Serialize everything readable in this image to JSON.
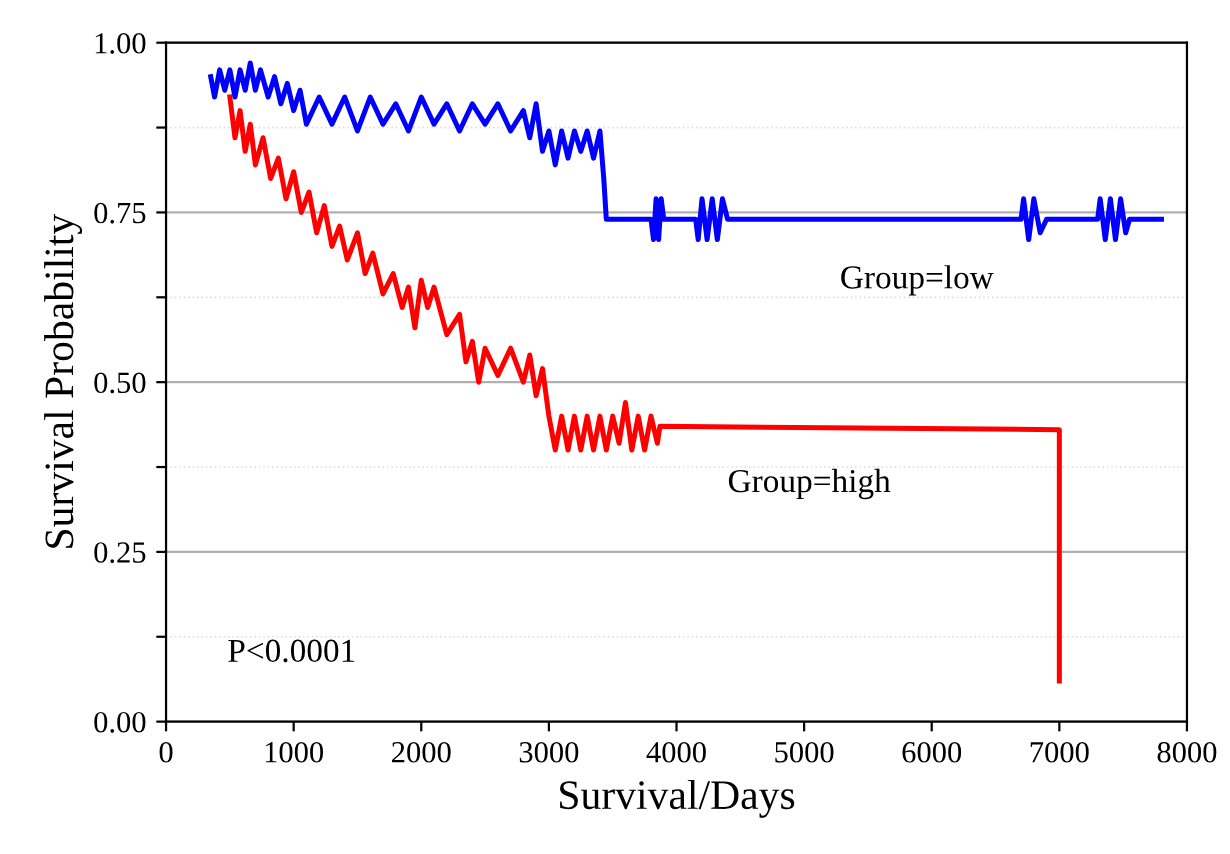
{
  "chart_data": {
    "type": "line",
    "xlabel": "Survival/Days",
    "ylabel": "Survival Probability",
    "xlim": [
      0,
      8000
    ],
    "xticks": [
      0,
      1000,
      2000,
      3000,
      4000,
      5000,
      6000,
      7000,
      8000
    ],
    "ylim": [
      0,
      1
    ],
    "yticks": [
      {
        "value": 0,
        "label": "0.00"
      },
      {
        "value": 0.125,
        "label": null
      },
      {
        "value": 0.25,
        "label": "0.25"
      },
      {
        "value": 0.375,
        "label": null
      },
      {
        "value": 0.5,
        "label": "0.50"
      },
      {
        "value": 0.625,
        "label": null
      },
      {
        "value": 0.75,
        "label": "0.75"
      },
      {
        "value": 0.875,
        "label": null
      },
      {
        "value": 1,
        "label": "1.00"
      }
    ],
    "grid": "y",
    "legend": false,
    "marker": "none",
    "line_style": "solid",
    "annotations": [
      "Group=low",
      "Group=high",
      "P<0.0001"
    ],
    "series": [
      {
        "color": "#0000ff",
        "x": [
          350,
          380,
          420,
          460,
          500,
          540,
          580,
          620,
          660,
          700,
          740,
          800,
          850,
          900,
          950,
          1000,
          1050,
          1100,
          1200,
          1300,
          1400,
          1500,
          1600,
          1700,
          1800,
          1900,
          2000,
          2100,
          2200,
          2300,
          2400,
          2500,
          2600,
          2700,
          2800,
          2850,
          2900,
          2950,
          3000,
          3050,
          3100,
          3150,
          3200,
          3250,
          3300,
          3350,
          3400,
          3430,
          3450,
          3800,
          3820,
          3840,
          3860,
          3880,
          3900,
          4150,
          4170,
          4200,
          4240,
          4280,
          4320,
          4360,
          4400,
          6700,
          6720,
          6760,
          6800,
          6850,
          6900,
          7300,
          7320,
          7360,
          7400,
          7440,
          7480,
          7520,
          7550,
          7800
        ],
        "values": [
          0.95,
          0.92,
          0.96,
          0.93,
          0.96,
          0.92,
          0.96,
          0.93,
          0.97,
          0.93,
          0.96,
          0.92,
          0.95,
          0.91,
          0.94,
          0.9,
          0.93,
          0.88,
          0.92,
          0.88,
          0.92,
          0.87,
          0.92,
          0.88,
          0.91,
          0.87,
          0.92,
          0.88,
          0.91,
          0.87,
          0.91,
          0.88,
          0.91,
          0.87,
          0.9,
          0.86,
          0.91,
          0.84,
          0.87,
          0.82,
          0.87,
          0.83,
          0.87,
          0.84,
          0.87,
          0.83,
          0.87,
          0.8,
          0.74,
          0.74,
          0.71,
          0.77,
          0.71,
          0.77,
          0.74,
          0.74,
          0.71,
          0.77,
          0.71,
          0.77,
          0.71,
          0.77,
          0.74,
          0.74,
          0.77,
          0.71,
          0.77,
          0.72,
          0.74,
          0.74,
          0.77,
          0.71,
          0.77,
          0.71,
          0.77,
          0.72,
          0.74,
          0.74
        ]
      },
      {
        "color": "#ff0000",
        "x": [
          500,
          540,
          580,
          620,
          660,
          700,
          760,
          820,
          880,
          940,
          1000,
          1060,
          1120,
          1180,
          1240,
          1300,
          1360,
          1420,
          1500,
          1560,
          1620,
          1700,
          1780,
          1850,
          1900,
          1950,
          2000,
          2050,
          2100,
          2200,
          2300,
          2350,
          2400,
          2450,
          2500,
          2600,
          2700,
          2800,
          2850,
          2900,
          2950,
          3000,
          3050,
          3100,
          3150,
          3200,
          3250,
          3300,
          3350,
          3400,
          3450,
          3500,
          3550,
          3600,
          3650,
          3700,
          3750,
          3800,
          3850,
          3870,
          7000,
          7000
        ],
        "values": [
          0.92,
          0.86,
          0.9,
          0.84,
          0.88,
          0.82,
          0.86,
          0.8,
          0.83,
          0.77,
          0.81,
          0.75,
          0.78,
          0.72,
          0.76,
          0.7,
          0.73,
          0.68,
          0.72,
          0.66,
          0.69,
          0.63,
          0.66,
          0.61,
          0.64,
          0.58,
          0.65,
          0.61,
          0.64,
          0.57,
          0.6,
          0.53,
          0.56,
          0.5,
          0.55,
          0.51,
          0.55,
          0.5,
          0.54,
          0.48,
          0.52,
          0.45,
          0.4,
          0.45,
          0.4,
          0.45,
          0.4,
          0.45,
          0.4,
          0.45,
          0.4,
          0.45,
          0.41,
          0.47,
          0.4,
          0.45,
          0.4,
          0.45,
          0.41,
          0.435,
          0.43,
          0.06
        ]
      }
    ]
  }
}
